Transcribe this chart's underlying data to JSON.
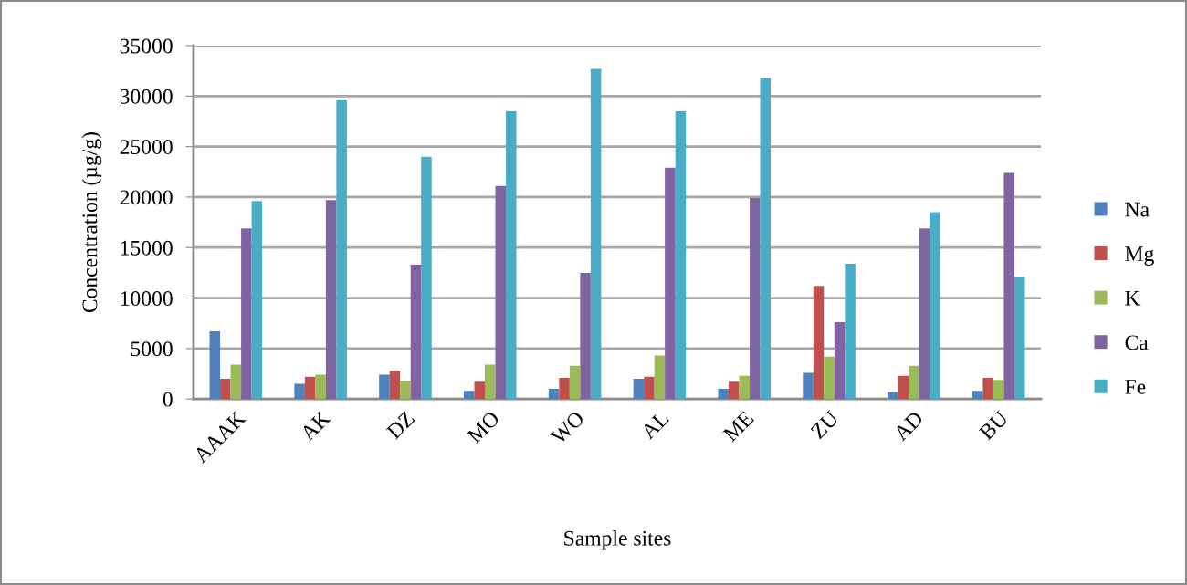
{
  "chart_data": {
    "type": "bar",
    "categories": [
      "AAAK",
      "AK",
      "DZ",
      "MO",
      "WO",
      "AL",
      "ME",
      "ZU",
      "AD",
      "BU"
    ],
    "series": [
      {
        "name": "Na",
        "color": "#4f81bd",
        "values": [
          6700,
          1500,
          2400,
          800,
          1000,
          2000,
          1000,
          2600,
          700,
          800
        ]
      },
      {
        "name": "Mg",
        "color": "#c0504d",
        "values": [
          2000,
          2200,
          2800,
          1700,
          2100,
          2200,
          1700,
          11200,
          2300,
          2100
        ]
      },
      {
        "name": "K",
        "color": "#9bbb59",
        "values": [
          3400,
          2400,
          1800,
          3400,
          3300,
          4300,
          2300,
          4200,
          3300,
          1900
        ]
      },
      {
        "name": "Ca",
        "color": "#8064a2",
        "values": [
          16900,
          19700,
          13300,
          21100,
          12500,
          22900,
          19900,
          7600,
          16900,
          22400
        ]
      },
      {
        "name": "Fe",
        "color": "#4bacc6",
        "values": [
          19600,
          29600,
          24000,
          28500,
          32700,
          28500,
          31800,
          13400,
          18500,
          12100
        ]
      }
    ],
    "xlabel": "Sample sites",
    "ylabel": "Concentration (µg/g)",
    "ylim": [
      0,
      35000
    ],
    "yticks": [
      0,
      5000,
      10000,
      15000,
      20000,
      25000,
      30000,
      35000
    ],
    "grid": "y",
    "legend": "right"
  }
}
